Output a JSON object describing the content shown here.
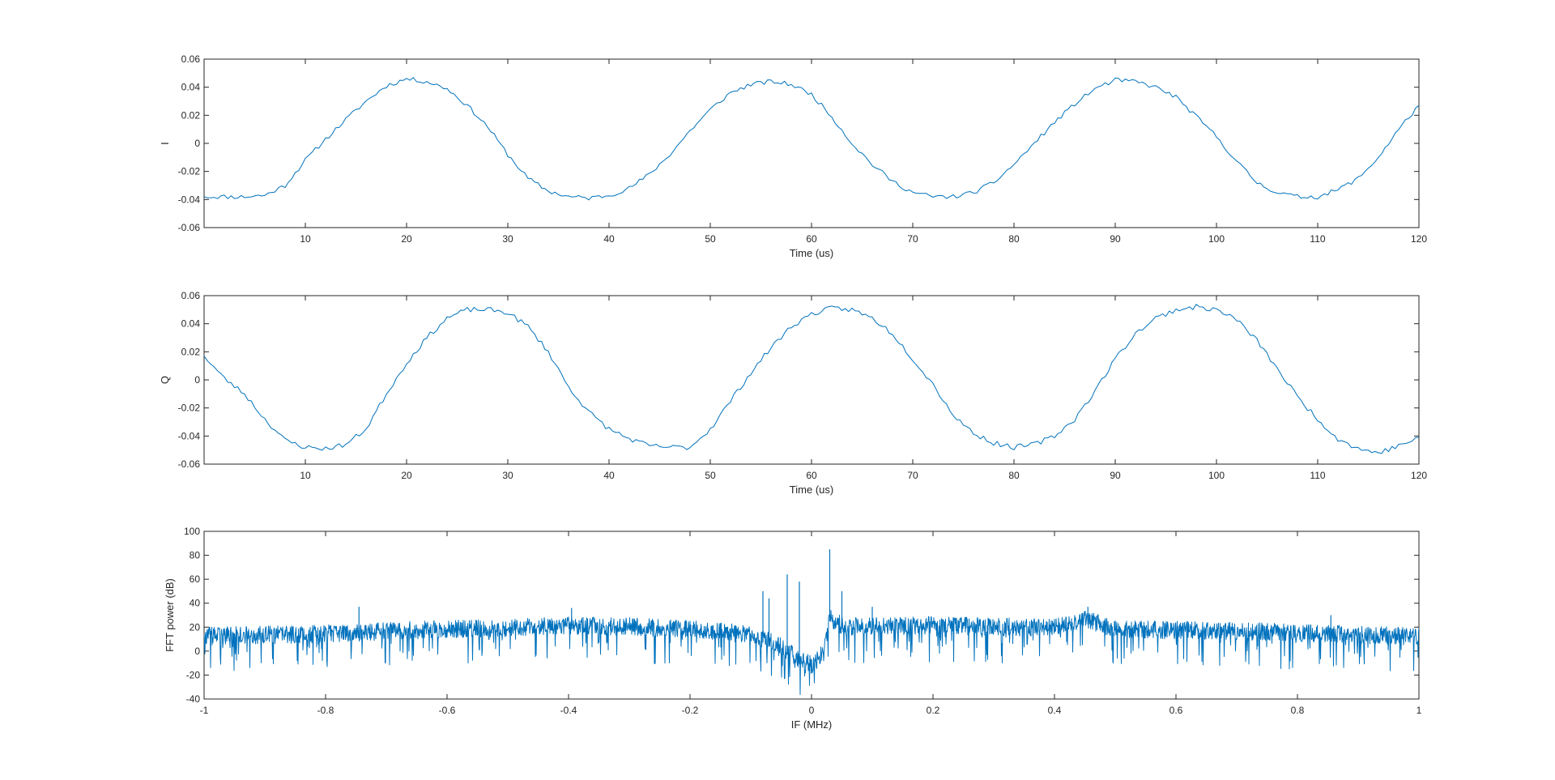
{
  "chart_data": [
    {
      "type": "line",
      "title": "",
      "xlabel": "Time (us)",
      "ylabel": "I",
      "xlim": [
        0,
        120
      ],
      "ylim": [
        -0.06,
        0.06
      ],
      "x_ticks": [
        10,
        20,
        30,
        40,
        50,
        60,
        70,
        80,
        90,
        100,
        110,
        120
      ],
      "x_tick_labels": [
        "10",
        "20",
        "30",
        "40",
        "50",
        "60",
        "70",
        "80",
        "90",
        "100",
        "110",
        "120"
      ],
      "y_ticks": [
        -0.06,
        -0.04,
        -0.02,
        0,
        0.02,
        0.04,
        0.06
      ],
      "y_tick_labels": [
        "-0.06",
        "-0.04",
        "-0.02",
        "0",
        "0.02",
        "0.04",
        "0.06"
      ],
      "grid": false,
      "legend": "none",
      "color": "#0072BD",
      "series": [
        {
          "x": [
            0,
            2,
            4,
            6,
            8,
            10,
            12,
            14,
            16,
            18,
            20,
            22,
            24,
            26,
            28,
            30,
            32,
            34,
            36,
            38,
            40,
            42,
            44,
            46,
            48,
            50,
            52,
            54,
            56,
            58,
            60,
            62,
            64,
            66,
            68,
            70,
            72,
            74,
            76,
            78,
            80,
            82,
            84,
            86,
            88,
            90,
            92,
            94,
            96,
            98,
            100,
            102,
            104,
            106,
            108,
            110,
            112,
            114,
            116,
            118,
            120
          ],
          "values": [
            -0.038,
            -0.038,
            -0.038,
            -0.037,
            -0.03,
            -0.012,
            0.003,
            0.017,
            0.03,
            0.041,
            0.046,
            0.044,
            0.039,
            0.027,
            0.012,
            -0.008,
            -0.025,
            -0.034,
            -0.038,
            -0.039,
            -0.037,
            -0.032,
            -0.022,
            -0.008,
            0.009,
            0.024,
            0.036,
            0.042,
            0.044,
            0.042,
            0.035,
            0.019,
            0.0,
            -0.015,
            -0.027,
            -0.035,
            -0.038,
            -0.038,
            -0.035,
            -0.028,
            -0.015,
            0.0,
            0.015,
            0.028,
            0.039,
            0.045,
            0.044,
            0.04,
            0.033,
            0.019,
            0.005,
            -0.013,
            -0.028,
            -0.035,
            -0.038,
            -0.038,
            -0.033,
            -0.025,
            -0.01,
            0.01,
            0.027
          ]
        }
      ]
    },
    {
      "type": "line",
      "title": "",
      "xlabel": "Time (us)",
      "ylabel": "Q",
      "xlim": [
        0,
        120
      ],
      "ylim": [
        -0.06,
        0.06
      ],
      "x_ticks": [
        10,
        20,
        30,
        40,
        50,
        60,
        70,
        80,
        90,
        100,
        110,
        120
      ],
      "x_tick_labels": [
        "10",
        "20",
        "30",
        "40",
        "50",
        "60",
        "70",
        "80",
        "90",
        "100",
        "110",
        "120"
      ],
      "y_ticks": [
        -0.06,
        -0.04,
        -0.02,
        0,
        0.02,
        0.04,
        0.06
      ],
      "y_tick_labels": [
        "-0.06",
        "-0.04",
        "-0.02",
        "0",
        "0.02",
        "0.04",
        "0.06"
      ],
      "grid": false,
      "legend": "none",
      "color": "#0072BD",
      "series": [
        {
          "x": [
            0,
            2,
            4,
            6,
            8,
            10,
            12,
            14,
            16,
            18,
            20,
            22,
            24,
            26,
            28,
            30,
            32,
            34,
            36,
            38,
            40,
            42,
            44,
            46,
            48,
            50,
            52,
            54,
            56,
            58,
            60,
            62,
            64,
            66,
            68,
            70,
            72,
            74,
            76,
            78,
            80,
            82,
            84,
            86,
            88,
            90,
            92,
            94,
            96,
            98,
            100,
            102,
            104,
            106,
            108,
            110,
            112,
            114,
            116,
            118,
            120
          ],
          "values": [
            0.017,
            0.001,
            -0.01,
            -0.028,
            -0.043,
            -0.048,
            -0.049,
            -0.046,
            -0.035,
            -0.01,
            0.012,
            0.03,
            0.044,
            0.05,
            0.05,
            0.048,
            0.038,
            0.02,
            -0.005,
            -0.023,
            -0.035,
            -0.042,
            -0.047,
            -0.048,
            -0.048,
            -0.035,
            -0.015,
            0.005,
            0.023,
            0.038,
            0.047,
            0.051,
            0.05,
            0.044,
            0.033,
            0.015,
            -0.003,
            -0.025,
            -0.038,
            -0.045,
            -0.048,
            -0.046,
            -0.04,
            -0.028,
            -0.008,
            0.015,
            0.033,
            0.044,
            0.05,
            0.052,
            0.05,
            0.043,
            0.028,
            0.008,
            -0.012,
            -0.028,
            -0.042,
            -0.049,
            -0.052,
            -0.047,
            -0.041
          ]
        }
      ]
    },
    {
      "type": "line",
      "title": "",
      "xlabel": "IF (MHz)",
      "ylabel": "FFT power (dB)",
      "xlim": [
        -1,
        1
      ],
      "ylim": [
        -40,
        100
      ],
      "x_ticks": [
        -1,
        -0.8,
        -0.6,
        -0.4,
        -0.2,
        0,
        0.2,
        0.4,
        0.6,
        0.8,
        1
      ],
      "x_tick_labels": [
        "-1",
        "-0.8",
        "-0.6",
        "-0.4",
        "-0.2",
        "0",
        "0.2",
        "0.4",
        "0.6",
        "0.8",
        "1"
      ],
      "y_ticks": [
        -40,
        -20,
        0,
        20,
        40,
        60,
        80,
        100
      ],
      "y_tick_labels": [
        "-40",
        "-20",
        "0",
        "20",
        "40",
        "60",
        "80",
        "100"
      ],
      "grid": false,
      "legend": "none",
      "color": "#0072BD",
      "series": [
        {
          "x": [
            -1,
            -0.9,
            -0.8,
            -0.7,
            -0.6,
            -0.5,
            -0.4,
            -0.3,
            -0.2,
            -0.15,
            -0.1,
            -0.08,
            -0.06,
            -0.04,
            -0.02,
            0,
            0.02,
            0.03,
            0.04,
            0.06,
            0.1,
            0.2,
            0.3,
            0.4,
            0.45,
            0.5,
            0.6,
            0.7,
            0.8,
            0.9,
            1
          ],
          "values": [
            14,
            15,
            16,
            18,
            20,
            21,
            23,
            22,
            20,
            18,
            15,
            12,
            8,
            2,
            -5,
            -10,
            0,
            30,
            25,
            22,
            22,
            23,
            22,
            21,
            28,
            20,
            19,
            18,
            17,
            15,
            14
          ]
        }
      ],
      "peaks": [
        {
          "x": -0.745,
          "y": 37
        },
        {
          "x": -0.395,
          "y": 36
        },
        {
          "x": -0.08,
          "y": 50
        },
        {
          "x": -0.07,
          "y": 44
        },
        {
          "x": -0.04,
          "y": 64
        },
        {
          "x": -0.02,
          "y": 58
        },
        {
          "x": 0.03,
          "y": 85
        },
        {
          "x": 0.05,
          "y": 50
        },
        {
          "x": 0.1,
          "y": 37
        },
        {
          "x": 0.455,
          "y": 37
        },
        {
          "x": 0.855,
          "y": 30
        }
      ]
    }
  ]
}
